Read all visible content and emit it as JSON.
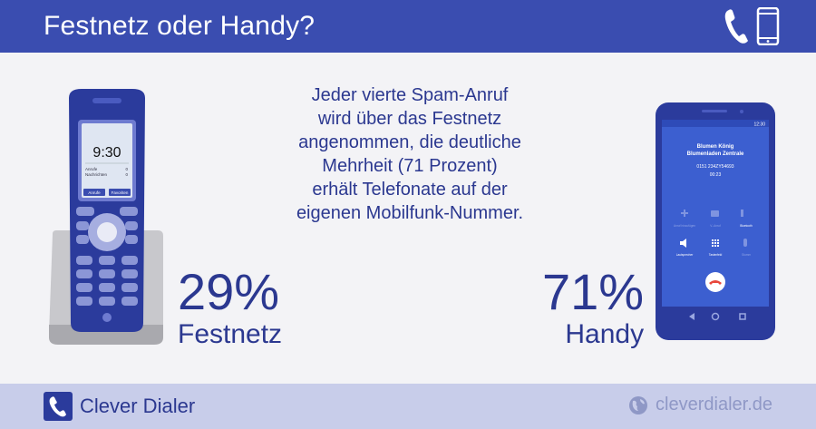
{
  "header": {
    "title": "Festnetz oder Handy?",
    "icons": [
      "phone-handset-icon",
      "smartphone-icon"
    ]
  },
  "center_text": {
    "lines": [
      "Jeder vierte Spam-Anruf",
      "wird über das Festnetz",
      "angenommen, die deutliche",
      "Mehrheit (71 Prozent)",
      "erhält Telefonate auf der",
      "eigenen Mobilfunk-Nummer."
    ]
  },
  "landline": {
    "percent": "29%",
    "label": "Festnetz",
    "screen": {
      "time": "9:30",
      "row1_label": "Anrufe",
      "row1_value": "0",
      "row2_label": "Nachrichten",
      "row2_value": "0",
      "softkey_left": "Anrufe",
      "softkey_right": "Favoriten"
    }
  },
  "mobile": {
    "percent": "71%",
    "label": "Handy",
    "screen": {
      "status_time": "12:30",
      "caller_name": "Blumen König",
      "caller_company": "Blumenladen Zentrale",
      "caller_number": "0151 234ZY54693",
      "call_duration": "00:23",
      "controls": [
        "Anruf hinzufügen",
        "V.-Anruf",
        "Bluetooth",
        "Lautsprecher",
        "Tastenfeld",
        "Stumm"
      ]
    }
  },
  "footer": {
    "brand": "Clever Dialer",
    "website": "cleverdialer.de"
  },
  "colors": {
    "primary": "#3a4db0",
    "text": "#2b3890",
    "footer_bg": "#c8cdea",
    "background": "#f3f3f6"
  }
}
